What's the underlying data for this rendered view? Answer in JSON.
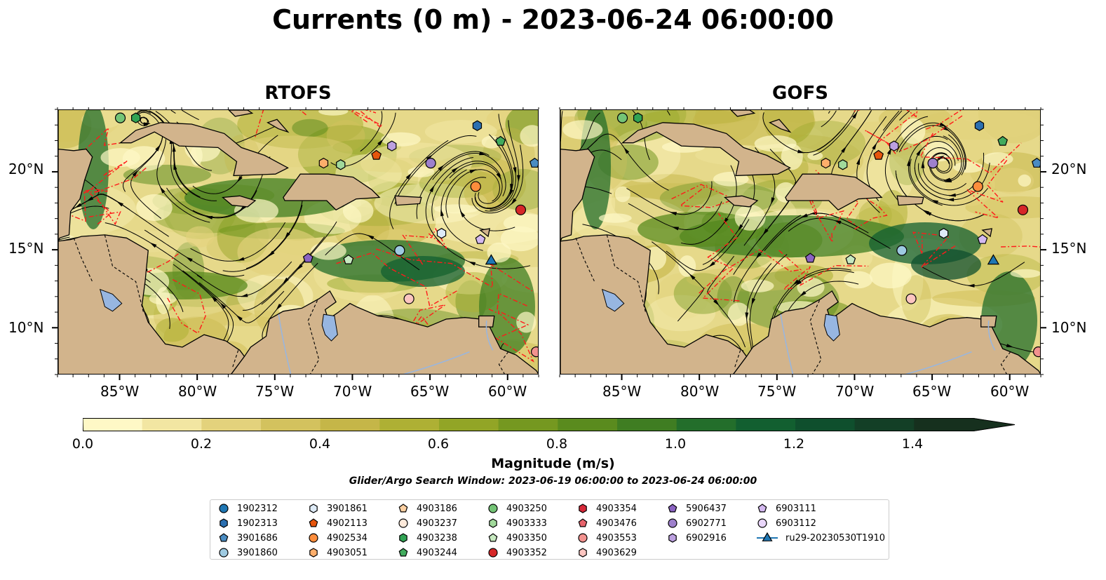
{
  "title": "Currents (0 m) - 2023-06-24 06:00:00",
  "panels": [
    {
      "name": "RTOFS"
    },
    {
      "name": "GOFS"
    }
  ],
  "lon_labels": [
    "85°W",
    "80°W",
    "75°W",
    "70°W",
    "65°W",
    "60°W"
  ],
  "lat_labels": [
    "20°N",
    "15°N",
    "10°N"
  ],
  "map_extent": {
    "lon": [
      -89,
      -58
    ],
    "lat": [
      7,
      24
    ]
  },
  "colorbar": {
    "label": "Magnitude (m/s)",
    "ticks": [
      "0.0",
      "0.2",
      "0.4",
      "0.6",
      "0.8",
      "1.0",
      "1.2",
      "1.4"
    ],
    "range": [
      0,
      1.5
    ],
    "extend": "max",
    "colors": [
      "#fef8c6",
      "#f2e6a2",
      "#e3d27c",
      "#d3c25e",
      "#c5b648",
      "#aeb034",
      "#92a526",
      "#759820",
      "#5a8b1e",
      "#3f7d22",
      "#236e2b",
      "#125f30",
      "#0f4f2d",
      "#133f26",
      "#16301e"
    ]
  },
  "search_window": "Glider/Argo Search Window: 2023-06-19 06:00:00 to 2023-06-24 06:00:00",
  "legend": {
    "columns": [
      [
        {
          "label": "1902312",
          "shape": "circle",
          "color": "#1f77b4"
        },
        {
          "label": "1902313",
          "shape": "hexagon",
          "color": "#2b6fb0"
        },
        {
          "label": "3901686",
          "shape": "pentagon",
          "color": "#4a8cc2"
        },
        {
          "label": "3901860",
          "shape": "circle",
          "color": "#9ecae1"
        }
      ],
      [
        {
          "label": "3901861",
          "shape": "hexagon",
          "color": "#deebf7"
        },
        {
          "label": "4902113",
          "shape": "pentagon",
          "color": "#e6550d"
        },
        {
          "label": "4902534",
          "shape": "circle",
          "color": "#fd8d3c"
        },
        {
          "label": "4903051",
          "shape": "hexagon",
          "color": "#fdae6b"
        }
      ],
      [
        {
          "label": "4903186",
          "shape": "pentagon",
          "color": "#fdd0a2"
        },
        {
          "label": "4903237",
          "shape": "circle",
          "color": "#feeadb"
        },
        {
          "label": "4903238",
          "shape": "hexagon",
          "color": "#31a354"
        },
        {
          "label": "4903244",
          "shape": "pentagon",
          "color": "#41ab5d"
        }
      ],
      [
        {
          "label": "4903250",
          "shape": "circle",
          "color": "#74c476"
        },
        {
          "label": "4903333",
          "shape": "hexagon",
          "color": "#a1d99b"
        },
        {
          "label": "4903350",
          "shape": "pentagon",
          "color": "#c7e9c0"
        },
        {
          "label": "4903352",
          "shape": "circle",
          "color": "#d62728"
        }
      ],
      [
        {
          "label": "4903354",
          "shape": "hexagon",
          "color": "#d62839"
        },
        {
          "label": "4903476",
          "shape": "pentagon",
          "color": "#e7636b"
        },
        {
          "label": "4903553",
          "shape": "circle",
          "color": "#f2928f"
        },
        {
          "label": "4903629",
          "shape": "hexagon",
          "color": "#fcc5c0"
        }
      ],
      [
        {
          "label": "5906437",
          "shape": "pentagon",
          "color": "#8a63c2"
        },
        {
          "label": "6902771",
          "shape": "circle",
          "color": "#9e80cc"
        },
        {
          "label": "6902916",
          "shape": "hexagon",
          "color": "#bca0e0"
        }
      ],
      [
        {
          "label": "6903111",
          "shape": "pentagon",
          "color": "#d4b9f0"
        },
        {
          "label": "6903112",
          "shape": "circle",
          "color": "#e9d6fa"
        },
        {
          "label": "ru29-20230530T1910",
          "shape": "triangle",
          "color": "#1f77b4"
        }
      ]
    ]
  },
  "markers": [
    {
      "lon": -85.0,
      "lat": 23.5,
      "shape": "circle",
      "color": "#74c476"
    },
    {
      "lon": -84.0,
      "lat": 23.5,
      "shape": "hexagon",
      "color": "#31a354"
    },
    {
      "lon": -62.0,
      "lat": 23.0,
      "shape": "hexagon",
      "color": "#2b6fb0"
    },
    {
      "lon": -60.5,
      "lat": 22.0,
      "shape": "pentagon",
      "color": "#41ab5d"
    },
    {
      "lon": -58.3,
      "lat": 20.6,
      "shape": "pentagon",
      "color": "#4a8cc2"
    },
    {
      "lon": -67.5,
      "lat": 21.7,
      "shape": "hexagon",
      "color": "#bca0e0"
    },
    {
      "lon": -68.5,
      "lat": 21.1,
      "shape": "pentagon",
      "color": "#e6550d"
    },
    {
      "lon": -71.9,
      "lat": 20.6,
      "shape": "hexagon",
      "color": "#fdae6b"
    },
    {
      "lon": -70.8,
      "lat": 20.5,
      "shape": "hexagon",
      "color": "#a1d99b"
    },
    {
      "lon": -65.0,
      "lat": 20.6,
      "shape": "circle",
      "color": "#9e80cc"
    },
    {
      "lon": -62.1,
      "lat": 19.1,
      "shape": "circle",
      "color": "#fd8d3c"
    },
    {
      "lon": -59.2,
      "lat": 17.6,
      "shape": "circle",
      "color": "#d62728"
    },
    {
      "lon": -64.3,
      "lat": 16.1,
      "shape": "hexagon",
      "color": "#deebf7"
    },
    {
      "lon": -61.8,
      "lat": 15.7,
      "shape": "pentagon",
      "color": "#d4b9f0"
    },
    {
      "lon": -67.0,
      "lat": 15.0,
      "shape": "circle",
      "color": "#9ecae1"
    },
    {
      "lon": -72.9,
      "lat": 14.5,
      "shape": "pentagon",
      "color": "#8a63c2"
    },
    {
      "lon": -70.3,
      "lat": 14.4,
      "shape": "pentagon",
      "color": "#c7e9c0"
    },
    {
      "lon": -61.1,
      "lat": 14.4,
      "shape": "triangle",
      "color": "#1f77b4"
    },
    {
      "lon": -66.4,
      "lat": 11.9,
      "shape": "circle",
      "color": "#fcc5c0"
    },
    {
      "lon": -58.2,
      "lat": 8.5,
      "shape": "circle",
      "color": "#f2928f"
    }
  ]
}
